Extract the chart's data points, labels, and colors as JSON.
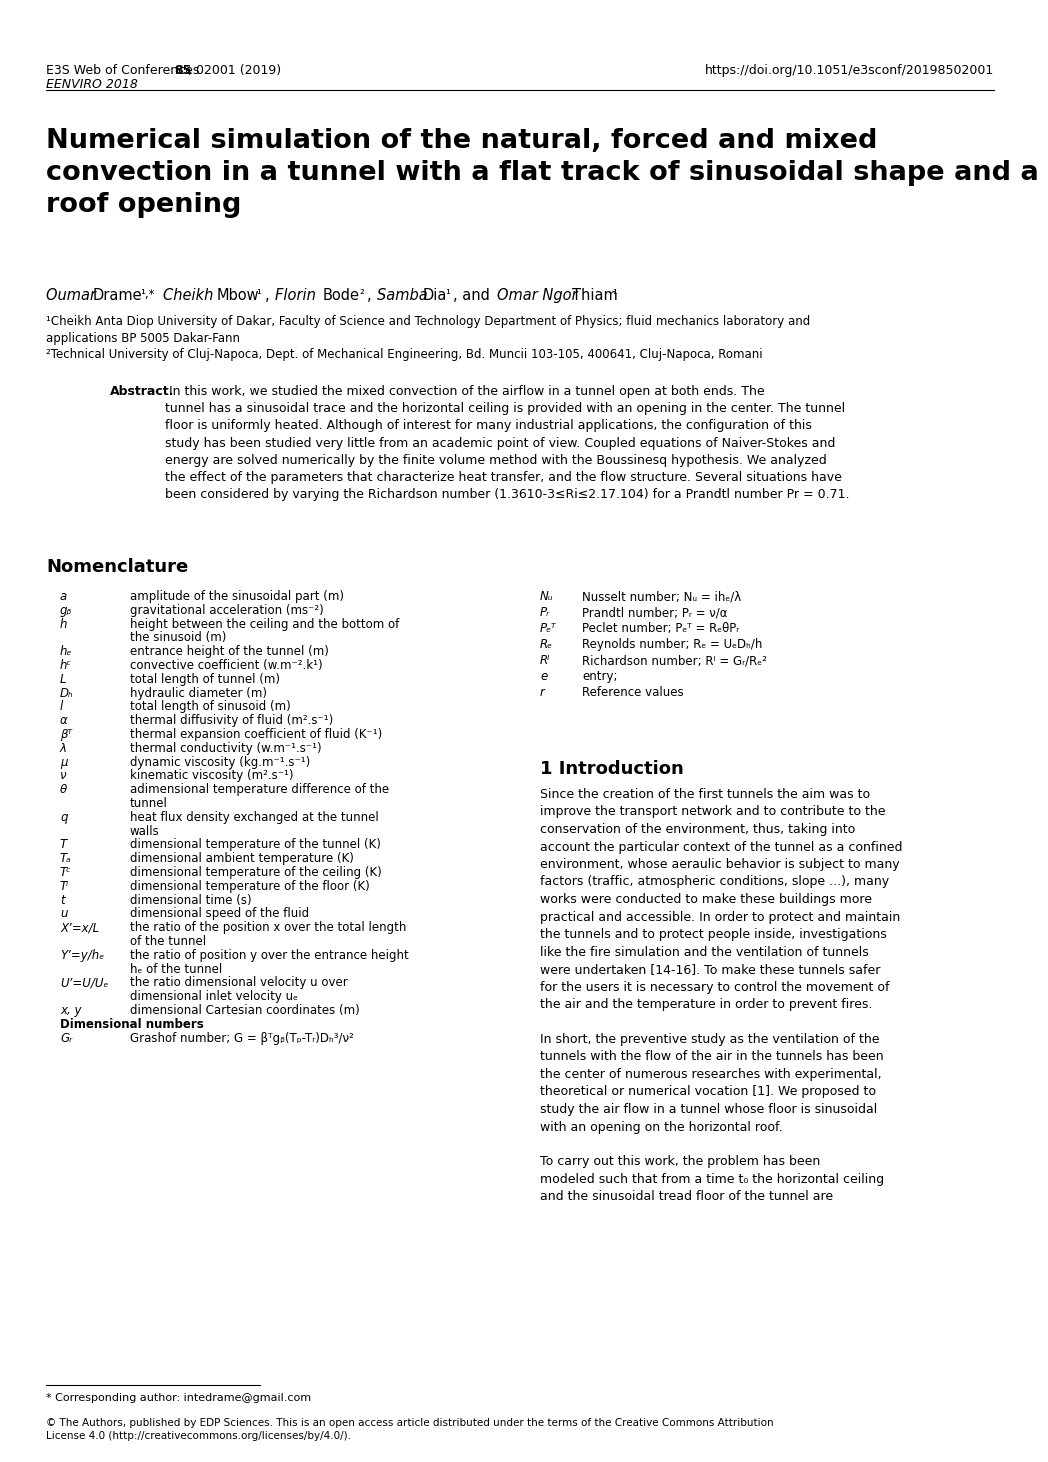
{
  "header_left1": "E3S Web of Conferences ",
  "header_left2": "85",
  "header_left3": ", 02001 (2019)",
  "header_italic": "EENVIRO 2018",
  "header_right": "https://doi.org/10.1051/e3sconf/20198502001",
  "title": "Numerical simulation of the natural, forced and mixed\nconvection in a tunnel with a flat track of sinusoidal shape and a\nroof opening",
  "affil1": "¹Cheikh Anta Diop University of Dakar, Faculty of Science and Technology Department of Physics; fluid mechanics laboratory and\napplications BP 5005 Dakar-Fann",
  "affil2": "²Technical University of Cluj-Napoca, Dept. of Mechanical Engineering, Bd. Muncii 103-105, 400641, Cluj-Napoca, Romani",
  "abstract_title": "Abstract.",
  "abstract_body": " In this work, we studied the mixed convection of the airflow in a tunnel open at both ends. The\ntunnel has a sinusoidal trace and the horizontal ceiling is provided with an opening in the center. The tunnel\nfloor is uniformly heated. Although of interest for many industrial applications, the configuration of this\nstudy has been studied very little from an academic point of view. Coupled equations of Naiver-Stokes and\nenergy are solved numerically by the finite volume method with the Boussinesq hypothesis. We analyzed\nthe effect of the parameters that characterize heat transfer, and the flow structure. Several situations have\nbeen considered by varying the Richardson number (1.3610-3≤Ri≤2.17.104) for a Prandtl number Pr = 0.71.",
  "nomenclature_title": "Nomenclature",
  "nom_left": [
    [
      "a",
      "amplitude of the sinusoidal part (m)"
    ],
    [
      "gᵦ",
      "gravitational acceleration (ms⁻²)"
    ],
    [
      "h",
      "height between the ceiling and the bottom of\nthe sinusoid (m)"
    ],
    [
      "hₑ",
      "entrance height of the tunnel (m)"
    ],
    [
      "hᶜ",
      "convective coefficient (w.m⁻².k¹)"
    ],
    [
      "L",
      "total length of tunnel (m)"
    ],
    [
      "Dₕ",
      "hydraulic diameter (m)"
    ],
    [
      "l",
      "total length of sinusoid (m)"
    ],
    [
      "α",
      "thermal diffusivity of fluid (m².s⁻¹)"
    ],
    [
      "βᵀ",
      "thermal expansion coefficient of fluid (K⁻¹)"
    ],
    [
      "λ",
      "thermal conductivity (w.m⁻¹.s⁻¹)"
    ],
    [
      "μ",
      "dynamic viscosity (kg.m⁻¹.s⁻¹)"
    ],
    [
      "ν",
      "kinematic viscosity (m².s⁻¹)"
    ],
    [
      "θ",
      "adimensional temperature difference of the\ntunnel"
    ],
    [
      "q",
      "heat flux density exchanged at the tunnel\nwalls"
    ],
    [
      "T",
      "dimensional temperature of the tunnel (K)"
    ],
    [
      "Tₐ",
      "dimensional ambient temperature (K)"
    ],
    [
      "Tᶜ",
      "dimensional temperature of the ceiling (K)"
    ],
    [
      "Tⁱ",
      "dimensional temperature of the floor (K)"
    ],
    [
      "t",
      "dimensional time (s)"
    ],
    [
      "u",
      "dimensional speed of the fluid"
    ],
    [
      "X’=x/L",
      "the ratio of the position x over the total length\nof the tunnel"
    ],
    [
      "Y’=y/hₑ",
      "the ratio of position y over the entrance height\nhₑ of the tunnel"
    ],
    [
      "U’=U/Uₑ",
      "the ratio dimensional velocity u over\ndimensional inlet velocity uₑ"
    ],
    [
      "x, y",
      "dimensional Cartesian coordinates (m)"
    ],
    [
      "Dimensional numbers",
      ""
    ],
    [
      "Gᵣ",
      "Grashof number; G = βᵀgᵦ(Tₚ-Tᵣ)Dₕ³/ν²"
    ]
  ],
  "nom_right": [
    [
      "Nᵤ",
      "Nusselt number; Nᵤ = ihₑ/λ"
    ],
    [
      "Pᵣ",
      "Prandtl number; Pᵣ = ν/α"
    ],
    [
      "Pₑᵀ",
      "Peclet number; Pₑᵀ = RₑθPᵣ"
    ],
    [
      "Rₑ",
      "Reynolds number; Rₑ = UₑDₕ/h"
    ],
    [
      "Rᴵ",
      "Richardson number; Rᴵ = Gᵣ/Rₑ²"
    ],
    [
      "e",
      "entry;"
    ],
    [
      "r",
      "Reference values"
    ]
  ],
  "intro_title": "1 Introduction",
  "intro_text": "Since the creation of the first tunnels the aim was to\nimprove the transport network and to contribute to the\nconservation of the environment, thus, taking into\naccount the particular context of the tunnel as a confined\nenvironment, whose aeraulic behavior is subject to many\nfactors (traffic, atmospheric conditions, slope ...), many\nworks were conducted to make these buildings more\npractical and accessible. In order to protect and maintain\nthe tunnels and to protect people inside, investigations\nlike the fire simulation and the ventilation of tunnels\nwere undertaken [14-16]. To make these tunnels safer\nfor the users it is necessary to control the movement of\nthe air and the temperature in order to prevent fires.\n\nIn short, the preventive study as the ventilation of the\ntunnels with the flow of the air in the tunnels has been\nthe center of numerous researches with experimental,\ntheoretical or numerical vocation [1]. We proposed to\nstudy the air flow in a tunnel whose floor is sinusoidal\nwith an opening on the horizontal roof.\n\nTo carry out this work, the problem has been\nmodeled such that from a time t₀ the horizontal ceiling\nand the sinusoidal tread floor of the tunnel are",
  "footnote": "* Corresponding author: intedrame@gmail.com",
  "copyright": "© The Authors, published by EDP Sciences. This is an open access article distributed under the terms of the Creative Commons Attribution\nLicense 4.0 (http://creativecommons.org/licenses/by/4.0/).",
  "bg_color": "#ffffff",
  "text_color": "#000000"
}
